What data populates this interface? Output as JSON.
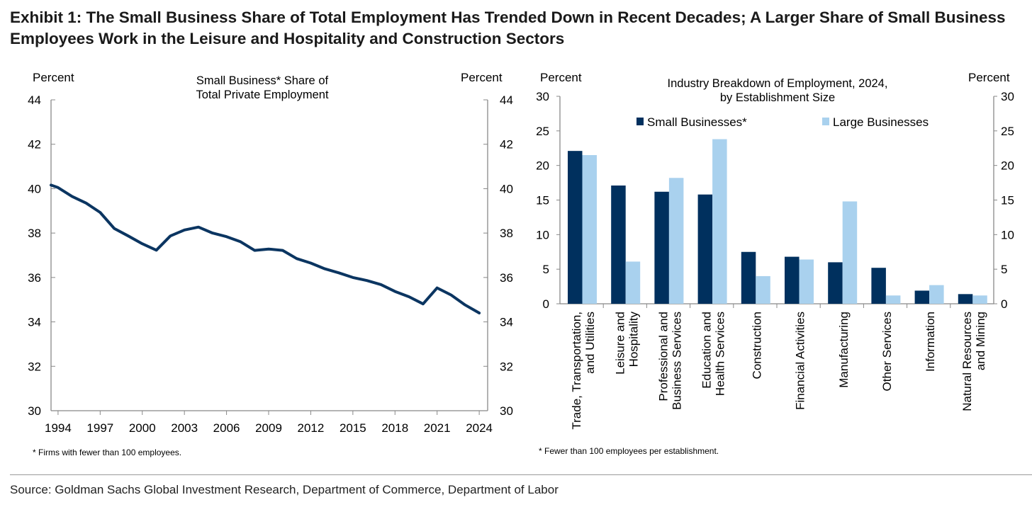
{
  "title": "Exhibit 1: The Small Business Share of Total Employment Has Trended Down in Recent Decades; A Larger Share of Small Business Employees Work in the Leisure and Hospitality and Construction Sectors",
  "source": "Source: Goldman Sachs Global Investment Research, Department of Commerce, Department of Labor",
  "chart_data": [
    {
      "type": "line",
      "title": "Small Business* Share of Total Private Employment",
      "title_lines": [
        "Small Business* Share of",
        "Total Private Employment"
      ],
      "ylabel_left": "Percent",
      "ylabel_right": "Percent",
      "ylim": [
        30,
        44
      ],
      "yticks": [
        30,
        32,
        34,
        36,
        38,
        40,
        42,
        44
      ],
      "xlim": [
        1993.5,
        2024.6
      ],
      "xticks": [
        1994,
        1997,
        2000,
        2003,
        2006,
        2009,
        2012,
        2015,
        2018,
        2021,
        2024
      ],
      "footnote": "* Firms with fewer than 100 employees.",
      "color": "#0b3561",
      "x": [
        1993.5,
        1994,
        1995,
        1996,
        1997,
        1998,
        1999,
        2000,
        2001,
        2002,
        2003,
        2004,
        2005,
        2006,
        2007,
        2008,
        2009,
        2010,
        2011,
        2012,
        2013,
        2014,
        2015,
        2016,
        2017,
        2018,
        2019,
        2020,
        2021,
        2022,
        2023,
        2024
      ],
      "y": [
        40.16,
        40.05,
        39.65,
        39.35,
        38.93,
        38.21,
        37.87,
        37.52,
        37.23,
        37.87,
        38.14,
        38.27,
        38.0,
        37.84,
        37.61,
        37.22,
        37.28,
        37.22,
        36.85,
        36.65,
        36.39,
        36.21,
        36.0,
        35.86,
        35.68,
        35.37,
        35.13,
        34.81,
        35.53,
        35.21,
        34.76,
        34.4
      ]
    },
    {
      "type": "bar",
      "title": "Industry Breakdown of Employment, 2024, by Establishment Size",
      "title_lines": [
        "Industry Breakdown of Employment, 2024,",
        "by Establishment Size"
      ],
      "ylabel_left": "Percent",
      "ylabel_right": "Percent",
      "ylim": [
        0,
        30
      ],
      "yticks": [
        0,
        5,
        10,
        15,
        20,
        25,
        30
      ],
      "legend_position": "top",
      "footnote": "* Fewer than 100 employees per establishment.",
      "categories": [
        [
          "Trade, Transportation,",
          "and Utilities"
        ],
        [
          "Leisure and",
          "Hospitality"
        ],
        [
          "Professional and",
          "Business Services"
        ],
        [
          "Education and",
          "Health Services"
        ],
        [
          "Construction"
        ],
        [
          "Financial Activities"
        ],
        [
          "Manufacturing"
        ],
        [
          "Other Services"
        ],
        [
          "Information"
        ],
        [
          "Natural Resources",
          "and Mining"
        ]
      ],
      "series": [
        {
          "name": "Small Businesses*",
          "color": "#00305e",
          "values": [
            22.1,
            17.1,
            16.2,
            15.8,
            7.5,
            6.8,
            6.0,
            5.2,
            1.9,
            1.4
          ]
        },
        {
          "name": "Large Businesses",
          "color": "#a9d1ee",
          "values": [
            21.5,
            6.1,
            18.2,
            23.8,
            4.0,
            6.4,
            14.8,
            1.2,
            2.7,
            1.2
          ]
        }
      ]
    }
  ]
}
